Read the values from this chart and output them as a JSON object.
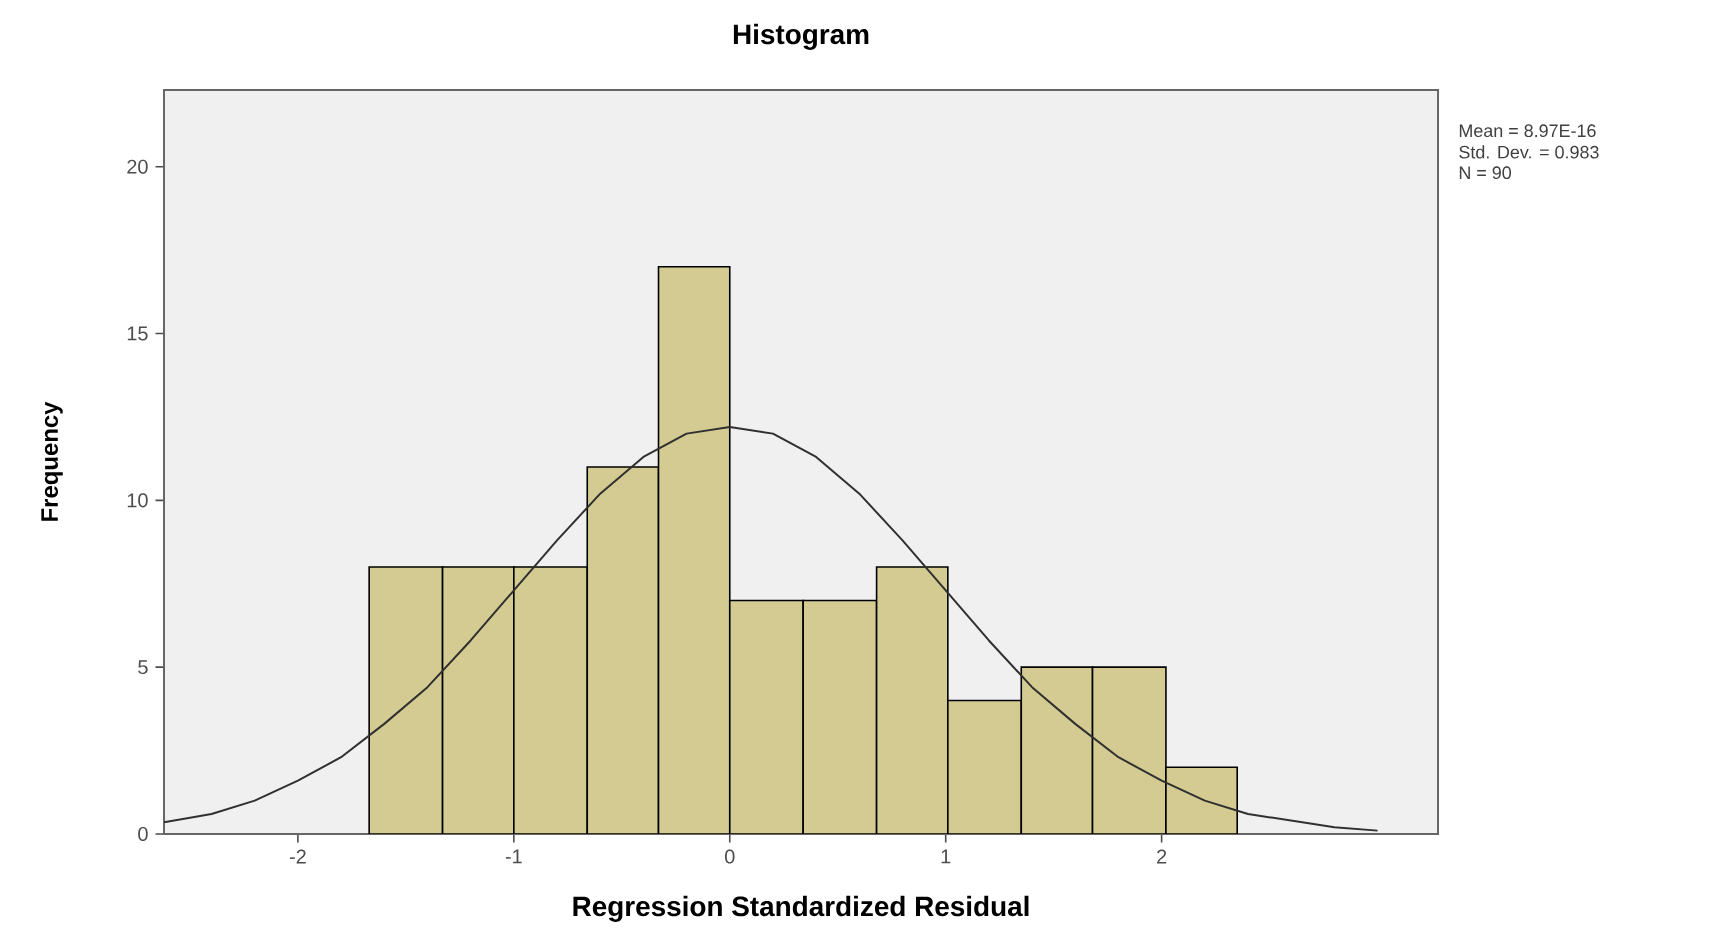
{
  "chart_data": {
    "type": "histogram",
    "title": "Histogram",
    "xlabel": "Regression Standardized Residual",
    "ylabel": "Frequency",
    "bins": [
      -1.67,
      -1.33,
      -1.0,
      -0.66,
      -0.33,
      0.0,
      0.34,
      0.68,
      1.01,
      1.35,
      1.68,
      2.02,
      2.35
    ],
    "values": [
      8,
      8,
      8,
      11,
      17,
      7,
      7,
      8,
      4,
      5,
      5,
      2
    ],
    "color": "#d3cb91",
    "series": [
      {
        "type": "line",
        "color": "#303030",
        "x": [
          -2.62,
          -2.4,
          -2.2,
          -2.0,
          -1.8,
          -1.6,
          -1.4,
          -1.2,
          -1.0,
          -0.8,
          -0.6,
          -0.4,
          -0.2,
          0.0,
          0.2,
          0.4,
          0.6,
          0.8,
          1.0,
          1.2,
          1.4,
          1.6,
          1.8,
          2.0,
          2.2,
          2.4,
          2.6,
          2.8,
          3.0
        ],
        "values": [
          0.35,
          0.6,
          1.0,
          1.6,
          2.3,
          3.3,
          4.4,
          5.8,
          7.3,
          8.8,
          10.2,
          11.3,
          12.0,
          12.2,
          12.0,
          11.3,
          10.2,
          8.8,
          7.3,
          5.8,
          4.4,
          3.3,
          2.3,
          1.6,
          1.0,
          0.6,
          0.4,
          0.2,
          0.1
        ]
      }
    ],
    "xlim": [
      -2.62,
      3.28
    ],
    "ylim": [
      0,
      22.3
    ],
    "xticks": [
      -2,
      -1,
      0,
      1,
      2
    ],
    "yticks": [
      0,
      5,
      10,
      15,
      20
    ],
    "annotations": [
      "Mean = 8.97E-16",
      "Std. Dev. = 0.983",
      "N = 90"
    ]
  }
}
